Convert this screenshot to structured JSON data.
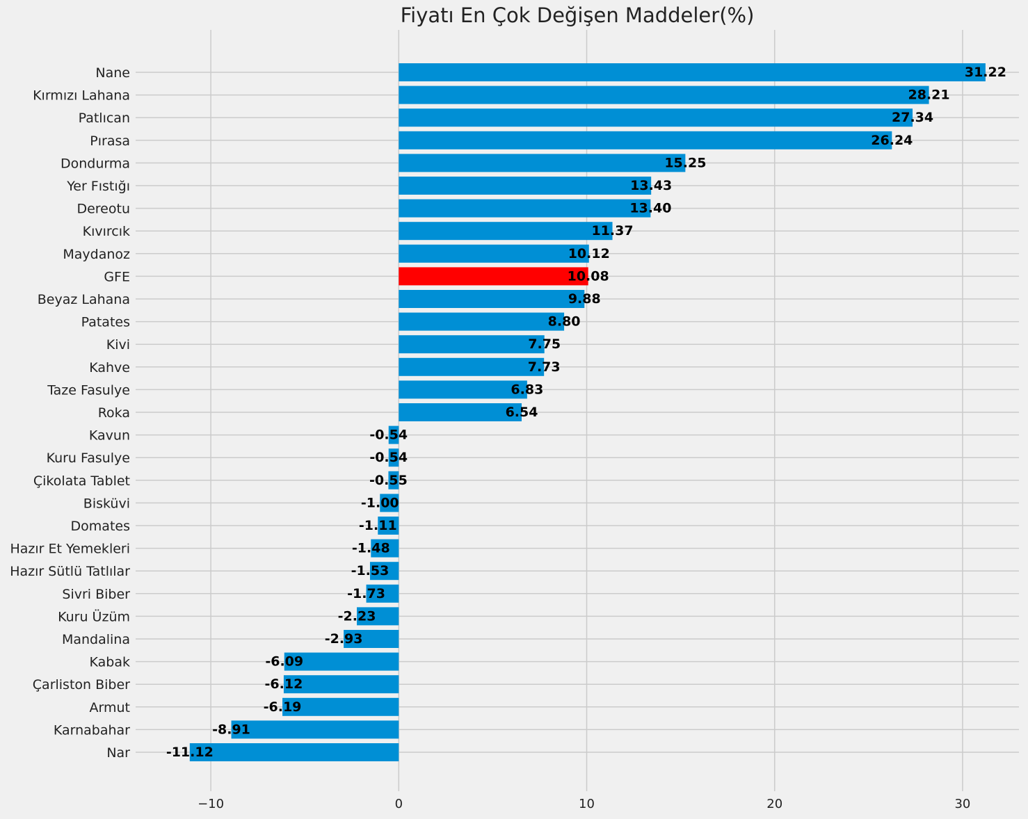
{
  "chart_data": {
    "type": "bar",
    "orientation": "horizontal",
    "title": "Fiyatı En Çok Değişen Maddeler(%)",
    "xlabel": "",
    "ylabel": "",
    "xlim": [
      -14,
      33
    ],
    "x_ticks": [
      -10,
      0,
      10,
      20,
      30
    ],
    "x_tick_labels": [
      "−10",
      "0",
      "10",
      "20",
      "30"
    ],
    "grid": true,
    "categories": [
      "Nane",
      "Kırmızı Lahana",
      "Patlıcan",
      "Pırasa",
      "Dondurma",
      "Yer Fıstığı",
      "Dereotu",
      "Kıvırcık",
      "Maydanoz",
      "GFE",
      "Beyaz Lahana",
      "Patates",
      "Kivi",
      "Kahve",
      "Taze Fasulye",
      "Roka",
      "Kavun",
      "Kuru Fasulye",
      "Çikolata Tablet",
      "Bisküvi",
      "Domates",
      "Hazır Et Yemekleri",
      "Hazır Sütlü Tatlılar",
      "Sivri Biber",
      "Kuru Üzüm",
      "Mandalina",
      "Kabak",
      "Çarliston Biber",
      "Armut",
      "Karnabahar",
      "Nar"
    ],
    "values": [
      31.22,
      28.21,
      27.34,
      26.24,
      15.25,
      13.43,
      13.4,
      11.37,
      10.12,
      10.08,
      9.88,
      8.8,
      7.75,
      7.73,
      6.83,
      6.54,
      -0.54,
      -0.54,
      -0.55,
      -1.0,
      -1.11,
      -1.48,
      -1.53,
      -1.73,
      -2.23,
      -2.93,
      -6.09,
      -6.12,
      -6.19,
      -8.91,
      -11.12
    ],
    "value_labels": [
      "31.22",
      "28.21",
      "27.34",
      "26.24",
      "15.25",
      "13.43",
      "13.40",
      "11.37",
      "10.12",
      "10.08",
      "9.88",
      "8.80",
      "7.75",
      "7.73",
      "6.83",
      "6.54",
      "-0.54",
      "-0.54",
      "-0.55",
      "-1.00",
      "-1.11",
      "-1.48",
      "-1.53",
      "-1.73",
      "-2.23",
      "-2.93",
      "-6.09",
      "-6.12",
      "-6.19",
      "-8.91",
      "-11.12"
    ],
    "bar_color": "#008fd5",
    "highlight_category": "GFE",
    "highlight_color": "#ff0000"
  }
}
